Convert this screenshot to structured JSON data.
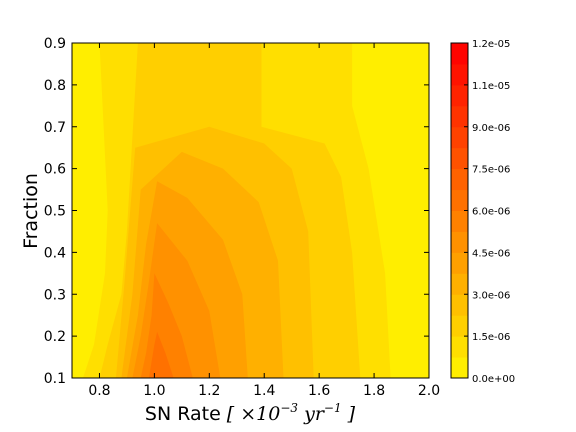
{
  "chart_data": {
    "type": "heatmap",
    "subtype": "filled-contour",
    "title": "",
    "xlabel": {
      "text": "SN Rate",
      "math": [
        "[ ×10",
        "−3",
        " yr",
        "−1",
        " ]"
      ]
    },
    "ylabel": "Fraction",
    "xlim": [
      0.7,
      2.0
    ],
    "ylim": [
      0.1,
      0.9
    ],
    "x_ticks": [
      "0.8",
      "1.0",
      "1.2",
      "1.4",
      "1.6",
      "1.8",
      "2.0"
    ],
    "y_ticks": [
      "0.1",
      "0.2",
      "0.3",
      "0.4",
      "0.5",
      "0.6",
      "0.7",
      "0.8",
      "0.9"
    ],
    "colorbar": {
      "ticks": [
        "0.0e+00",
        "1.5e-06",
        "3.0e-06",
        "4.5e-06",
        "6.0e-06",
        "7.5e-06",
        "9.0e-06",
        "1.1e-05",
        "1.2e-05"
      ],
      "levels": [
        0,
        7.5e-07,
        1.5e-06,
        2.25e-06,
        3e-06,
        3.75e-06,
        4.5e-06,
        5.25e-06,
        6e-06,
        6.75e-06,
        7.5e-06,
        8.25e-06,
        9e-06,
        9.75e-06,
        1.05e-05,
        1.125e-05,
        1.2e-05
      ],
      "colors": [
        "#ffee00",
        "#ffdf00",
        "#ffcf00",
        "#ffc000",
        "#ffb000",
        "#ffa000",
        "#ff9100",
        "#ff8100",
        "#ff7100",
        "#ff6200",
        "#ff5200",
        "#ff4200",
        "#ff3300",
        "#ff2300",
        "#ff1300",
        "#ff0400"
      ]
    },
    "regions": [
      {
        "level": 1,
        "points": [
          [
            0.8,
            0.9
          ],
          [
            0.83,
            0.5
          ],
          [
            0.82,
            0.35
          ],
          [
            0.78,
            0.18
          ],
          [
            0.74,
            0.1
          ],
          [
            1.86,
            0.1
          ],
          [
            1.84,
            0.35
          ],
          [
            1.78,
            0.6
          ],
          [
            1.72,
            0.75
          ],
          [
            1.72,
            0.9
          ]
        ]
      },
      {
        "level": 2,
        "points": [
          [
            0.94,
            0.9
          ],
          [
            0.9,
            0.45
          ],
          [
            0.88,
            0.3
          ],
          [
            0.83,
            0.18
          ],
          [
            0.8,
            0.1
          ],
          [
            1.75,
            0.1
          ],
          [
            1.72,
            0.4
          ],
          [
            1.68,
            0.58
          ],
          [
            1.62,
            0.66
          ],
          [
            1.39,
            0.7
          ],
          [
            1.39,
            0.9
          ]
        ]
      },
      {
        "level": 3,
        "points": [
          [
            0.93,
            0.65
          ],
          [
            0.89,
            0.32
          ],
          [
            0.86,
            0.1
          ],
          [
            1.58,
            0.1
          ],
          [
            1.56,
            0.45
          ],
          [
            1.5,
            0.6
          ],
          [
            1.4,
            0.66
          ],
          [
            1.2,
            0.7
          ]
        ]
      },
      {
        "level": 4,
        "points": [
          [
            0.95,
            0.55
          ],
          [
            0.92,
            0.3
          ],
          [
            0.88,
            0.1
          ],
          [
            1.47,
            0.1
          ],
          [
            1.45,
            0.38
          ],
          [
            1.38,
            0.52
          ],
          [
            1.25,
            0.6
          ],
          [
            1.1,
            0.64
          ]
        ]
      },
      {
        "level": 5,
        "points": [
          [
            0.97,
            0.42
          ],
          [
            0.94,
            0.25
          ],
          [
            0.9,
            0.1
          ],
          [
            1.34,
            0.1
          ],
          [
            1.32,
            0.3
          ],
          [
            1.25,
            0.43
          ],
          [
            1.12,
            0.53
          ],
          [
            1.01,
            0.57
          ]
        ]
      },
      {
        "level": 6,
        "points": [
          [
            0.98,
            0.33
          ],
          [
            0.95,
            0.2
          ],
          [
            0.92,
            0.1
          ],
          [
            1.24,
            0.1
          ],
          [
            1.2,
            0.26
          ],
          [
            1.12,
            0.38
          ],
          [
            1.01,
            0.47
          ]
        ]
      },
      {
        "level": 7,
        "points": [
          [
            0.99,
            0.25
          ],
          [
            0.97,
            0.16
          ],
          [
            0.95,
            0.1
          ],
          [
            1.14,
            0.1
          ],
          [
            1.1,
            0.2
          ],
          [
            1.05,
            0.28
          ],
          [
            1.0,
            0.35
          ]
        ]
      },
      {
        "level": 8,
        "points": [
          [
            1.0,
            0.18
          ],
          [
            0.98,
            0.1
          ],
          [
            1.07,
            0.1
          ],
          [
            1.04,
            0.16
          ],
          [
            1.01,
            0.21
          ]
        ]
      }
    ]
  }
}
